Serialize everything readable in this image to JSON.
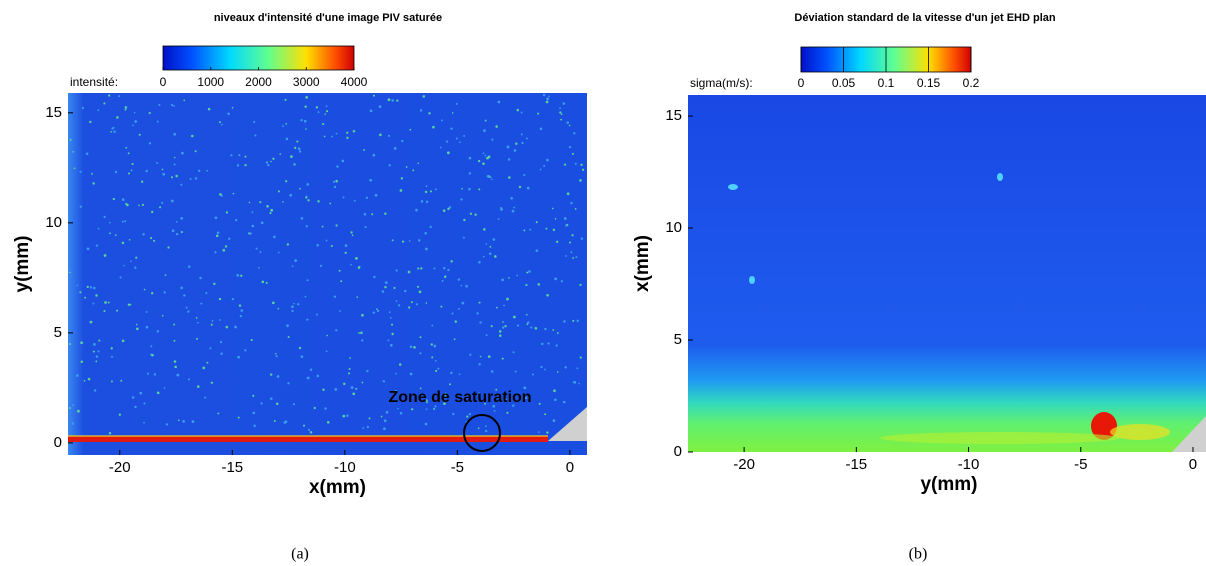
{
  "chart_data": [
    {
      "type": "heatmap",
      "title": "niveaux d'intensité d'une image PIV saturée",
      "colorbar_label": "intensité:",
      "clim": [
        0,
        4000
      ],
      "cticks": [
        0,
        1000,
        2000,
        3000,
        4000
      ],
      "xlabel": "x(mm)",
      "ylabel": "y(mm)",
      "xlim": [
        -22.3,
        0.76
      ],
      "ylim": [
        -0.55,
        15.9
      ],
      "xticks": [
        -20,
        -15,
        -10,
        -5,
        0
      ],
      "yticks": [
        0,
        5,
        10,
        15
      ],
      "annotation": "Zone de saturation",
      "caption": "(a)"
    },
    {
      "type": "heatmap",
      "title": "Déviation standard de la vitesse d'un jet EHD plan",
      "colorbar_label": "sigma(m/s):",
      "clim": [
        0,
        0.2
      ],
      "cticks": [
        0,
        0.05,
        0.1,
        0.15,
        0.2
      ],
      "xlabel": "y(mm)",
      "ylabel": "x(mm)",
      "xlim": [
        -22.5,
        0.58
      ],
      "ylim": [
        0,
        15.94
      ],
      "xticks": [
        -20,
        -15,
        -10,
        -5,
        0
      ],
      "yticks": [
        0,
        5,
        10,
        15
      ],
      "caption": "(b)"
    }
  ]
}
